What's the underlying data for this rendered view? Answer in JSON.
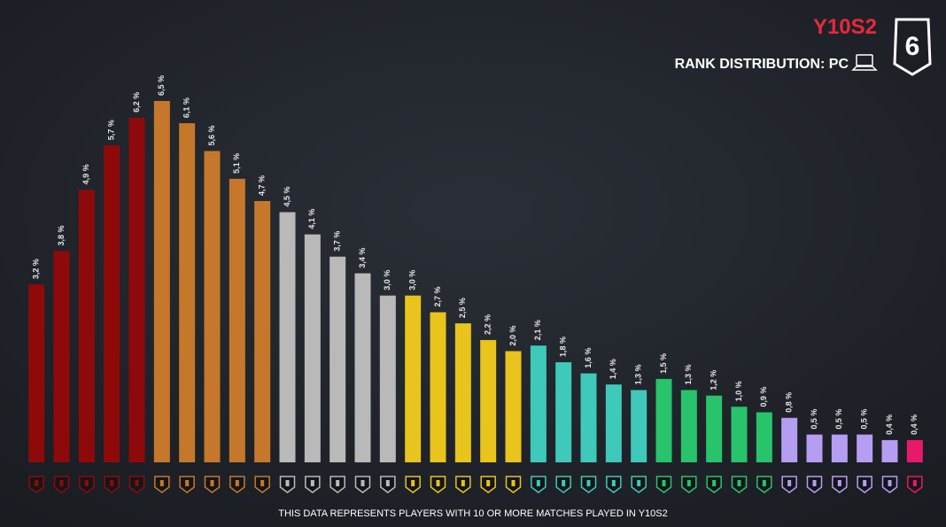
{
  "chart_data": {
    "type": "bar",
    "title": "Y10S2",
    "subtitle": "RANK DISTRIBUTION: PC",
    "logo": "6",
    "footnote": "THIS DATA REPRESENTS PLAYERS WITH 10 OR MORE MATCHES PLAYED IN Y10S2",
    "categories": [
      null,
      null,
      null,
      null,
      null,
      null,
      null,
      null,
      null,
      null,
      null,
      null,
      null,
      null,
      null,
      null,
      null,
      null,
      null,
      null,
      null,
      null,
      null,
      null,
      null,
      null,
      null,
      null,
      null,
      null,
      null,
      null,
      null,
      null,
      null,
      null
    ],
    "values": [
      3.2,
      3.8,
      4.9,
      5.7,
      6.2,
      6.5,
      6.1,
      5.6,
      5.1,
      4.7,
      4.5,
      4.1,
      3.7,
      3.4,
      3.0,
      3.0,
      2.7,
      2.5,
      2.2,
      2.0,
      2.1,
      1.8,
      1.6,
      1.4,
      1.3,
      1.5,
      1.3,
      1.2,
      1.0,
      0.9,
      0.8,
      0.5,
      0.5,
      0.5,
      0.4,
      0.4
    ],
    "value_labels": [
      "3,2 %",
      "3,8 %",
      "4,9 %",
      "5,7 %",
      "6,2 %",
      "6,5 %",
      "6,1 %",
      "5,6 %",
      "5,1 %",
      "4,7 %",
      "4,5 %",
      "4,1 %",
      "3,7 %",
      "3,4 %",
      "3,0 %",
      "3,0 %",
      "2,7 %",
      "2,5 %",
      "2,2 %",
      "2,0 %",
      "2,1 %",
      "1,8 %",
      "1,6 %",
      "1,4 %",
      "1,3 %",
      "1,5 %",
      "1,3 %",
      "1,2 %",
      "1,0 %",
      "0,9 %",
      "0,8 %",
      "0,5 %",
      "0,5 %",
      "0,5 %",
      "0,4 %",
      "0,4 %"
    ],
    "colors": [
      "#8e0a0a",
      "#8e0a0a",
      "#8e0a0a",
      "#8e0a0a",
      "#8e0a0a",
      "#c5782b",
      "#c5782b",
      "#c5782b",
      "#c5782b",
      "#c5782b",
      "#b9b9b9",
      "#b9b9b9",
      "#b9b9b9",
      "#b9b9b9",
      "#b9b9b9",
      "#e8c41c",
      "#e8c41c",
      "#e8c41c",
      "#e8c41c",
      "#e8c41c",
      "#3ec9bb",
      "#3ec9bb",
      "#3ec9bb",
      "#3ec9bb",
      "#3ec9bb",
      "#27c46c",
      "#27c46c",
      "#27c46c",
      "#27c46c",
      "#27c46c",
      "#b59df2",
      "#b59df2",
      "#b59df2",
      "#b59df2",
      "#b59df2",
      "#e8196b"
    ],
    "title_color": "#e8283c",
    "ylim": [
      0,
      6.5
    ]
  }
}
